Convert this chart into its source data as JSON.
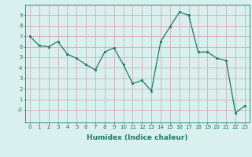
{
  "xlabel": "Humidex (Indice chaleur)",
  "ylabel": "",
  "x": [
    0,
    1,
    2,
    3,
    4,
    5,
    6,
    7,
    8,
    9,
    10,
    11,
    12,
    13,
    14,
    15,
    16,
    17,
    18,
    19,
    20,
    21,
    22,
    23
  ],
  "y": [
    7.0,
    6.1,
    6.0,
    6.5,
    5.3,
    4.9,
    4.3,
    3.8,
    5.5,
    5.9,
    4.3,
    2.5,
    2.8,
    1.8,
    6.5,
    7.9,
    9.3,
    9.0,
    5.5,
    5.5,
    4.9,
    4.7,
    -0.3,
    0.4
  ],
  "xlim": [
    -0.5,
    23.5
  ],
  "ylim": [
    -1.2,
    10
  ],
  "yticks": [
    0,
    1,
    2,
    3,
    4,
    5,
    6,
    7,
    8,
    9
  ],
  "ytick_labels": [
    "-0",
    "1",
    "2",
    "3",
    "4",
    "5",
    "6",
    "7",
    "8",
    "9"
  ],
  "xticks": [
    0,
    1,
    2,
    3,
    4,
    5,
    6,
    7,
    8,
    9,
    10,
    11,
    12,
    13,
    14,
    15,
    16,
    17,
    18,
    19,
    20,
    21,
    22,
    23
  ],
  "line_color": "#1a7a6e",
  "marker_color": "#1a7a6e",
  "bg_color": "#d9f0ee",
  "grid_color": "#c8a8a8",
  "axis_color": "#1a7a6e",
  "tick_color": "#1a7a6e",
  "label_color": "#1a7a6e",
  "tick_fontsize": 5.0,
  "xlabel_fontsize": 6.5
}
